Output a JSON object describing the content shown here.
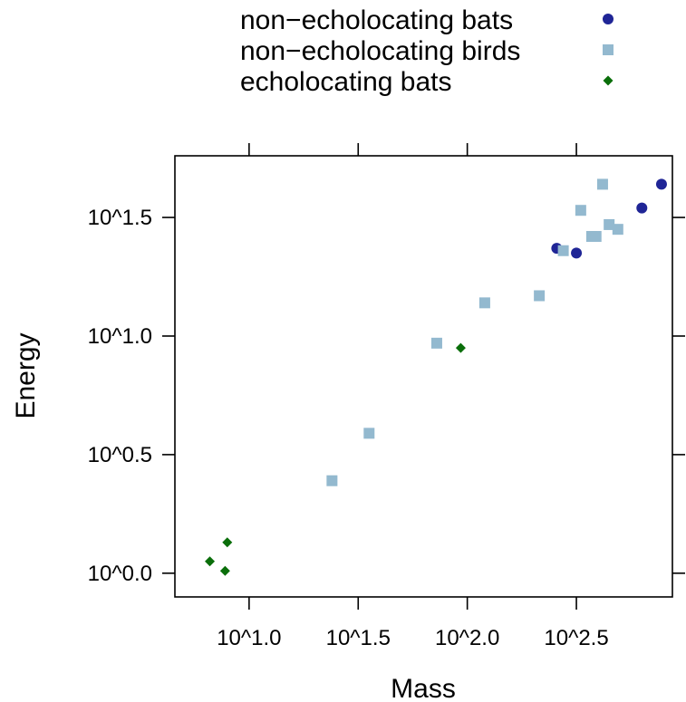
{
  "chart_data": {
    "type": "scatter",
    "xlabel": "Mass",
    "ylabel": "Energy",
    "scale": "log10",
    "xlim_log10": [
      0.66,
      2.94
    ],
    "ylim_log10": [
      -0.1,
      1.76
    ],
    "x_ticks": [
      {
        "value": 1.0,
        "label": "10^1.0"
      },
      {
        "value": 1.5,
        "label": "10^1.5"
      },
      {
        "value": 2.0,
        "label": "10^2.0"
      },
      {
        "value": 2.5,
        "label": "10^2.5"
      }
    ],
    "y_ticks": [
      {
        "value": 0.0,
        "label": "10^0.0"
      },
      {
        "value": 0.5,
        "label": "10^0.5"
      },
      {
        "value": 1.0,
        "label": "10^1.0"
      },
      {
        "value": 1.5,
        "label": "10^1.5"
      }
    ],
    "legend_position": "top",
    "series": [
      {
        "name": "non−echolocating bats",
        "marker": "circle",
        "color": "#1f2596",
        "points": [
          {
            "x_log10": 2.41,
            "y_log10": 1.37
          },
          {
            "x_log10": 2.5,
            "y_log10": 1.35
          },
          {
            "x_log10": 2.8,
            "y_log10": 1.54
          },
          {
            "x_log10": 2.89,
            "y_log10": 1.64
          }
        ]
      },
      {
        "name": "non−echolocating birds",
        "marker": "square",
        "color": "#93b9cf",
        "points": [
          {
            "x_log10": 1.38,
            "y_log10": 0.39
          },
          {
            "x_log10": 1.55,
            "y_log10": 0.59
          },
          {
            "x_log10": 1.86,
            "y_log10": 0.97
          },
          {
            "x_log10": 2.08,
            "y_log10": 1.14
          },
          {
            "x_log10": 2.33,
            "y_log10": 1.17
          },
          {
            "x_log10": 2.44,
            "y_log10": 1.36
          },
          {
            "x_log10": 2.52,
            "y_log10": 1.53
          },
          {
            "x_log10": 2.57,
            "y_log10": 1.42
          },
          {
            "x_log10": 2.59,
            "y_log10": 1.42
          },
          {
            "x_log10": 2.62,
            "y_log10": 1.64
          },
          {
            "x_log10": 2.65,
            "y_log10": 1.47
          },
          {
            "x_log10": 2.69,
            "y_log10": 1.45
          }
        ]
      },
      {
        "name": "echolocating bats",
        "marker": "diamond",
        "color": "#0a6e0a",
        "points": [
          {
            "x_log10": 0.82,
            "y_log10": 0.05
          },
          {
            "x_log10": 0.89,
            "y_log10": 0.01
          },
          {
            "x_log10": 0.9,
            "y_log10": 0.13
          },
          {
            "x_log10": 1.97,
            "y_log10": 0.95
          }
        ]
      }
    ]
  }
}
